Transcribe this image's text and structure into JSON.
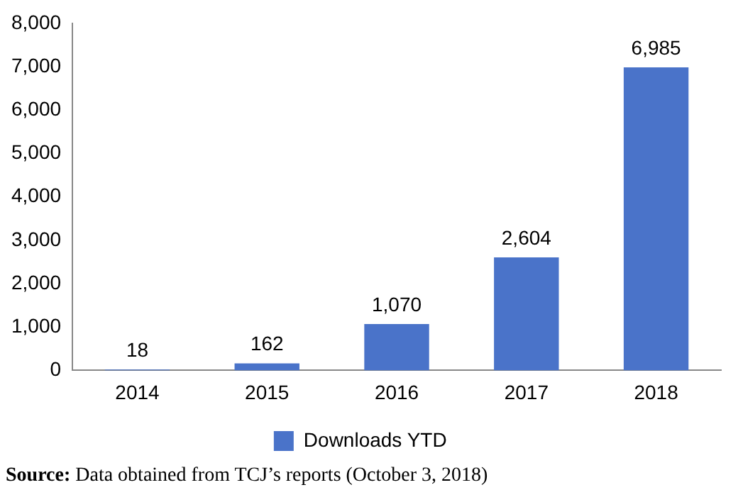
{
  "chart_data": {
    "type": "bar",
    "categories": [
      "2014",
      "2015",
      "2016",
      "2017",
      "2018"
    ],
    "series": [
      {
        "name": "Downloads YTD",
        "color": "#4a73c9",
        "values": [
          18,
          162,
          1070,
          2604,
          6985
        ],
        "value_labels": [
          "18",
          "162",
          "1,070",
          "2,604",
          "6,985"
        ]
      }
    ],
    "ylim": [
      0,
      8000
    ],
    "yticks": [
      0,
      {
        "value": 1000,
        "label": "1,000"
      },
      {
        "value": 2000,
        "label": "2,000"
      },
      {
        "value": 3000,
        "label": "3,000"
      },
      {
        "value": 4000,
        "label": "4,000"
      },
      {
        "value": 5000,
        "label": "5,000"
      },
      {
        "value": 6000,
        "label": "6,000"
      },
      {
        "value": 7000,
        "label": "7,000"
      },
      {
        "value": 8000,
        "label": "8,000"
      }
    ],
    "grid": false,
    "legend": "bottom",
    "annotations": [
      "Source: Data obtained from TCJ’s reports (October 3, 2018)"
    ]
  }
}
